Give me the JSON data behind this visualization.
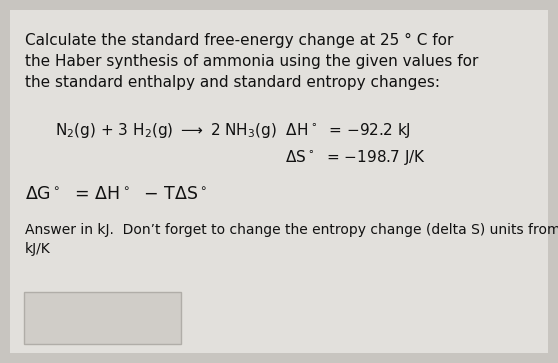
{
  "bg_color": "#c8c5c0",
  "card_color": "#e2e0dc",
  "title_lines": [
    "Calculate the standard free-energy change at 25 ° C for",
    "the Haber synthesis of ammonia using the given values for",
    "the standard enthalpy and standard entropy changes:"
  ],
  "answer_line1": "Answer in kJ.  Don’t forget to change the entropy change (delta S) units from J/K to",
  "answer_line2": "kJ/K",
  "text_color": "#111111",
  "font_size_title": 11.0,
  "font_size_reaction": 11.0,
  "font_size_formula": 12.5,
  "font_size_answer": 10.0,
  "input_box_color": "#d0cdc8",
  "input_box_edge": "#b0ada8"
}
